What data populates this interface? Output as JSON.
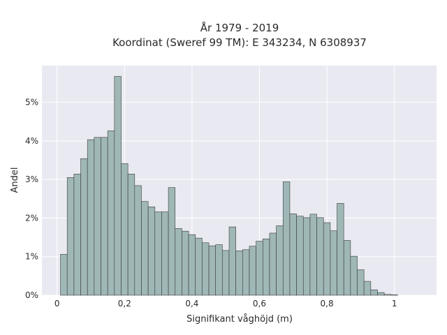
{
  "chart_data": {
    "type": "bar",
    "title": "År 1979 - 2019",
    "subtitle": "Koordinat (Sweref 99 TM): E 343234, N 6308937",
    "xlabel": "Signifikant våghöjd (m)",
    "ylabel": "Andel",
    "xlim": [
      -0.045,
      1.125
    ],
    "ylim": [
      0,
      0.0595
    ],
    "bin_width": 0.02,
    "bin_start": 0.01,
    "values": [
      0.0106,
      0.0305,
      0.0314,
      0.0354,
      0.0403,
      0.0409,
      0.0409,
      0.0426,
      0.0567,
      0.0341,
      0.0314,
      0.0284,
      0.0243,
      0.0229,
      0.0216,
      0.0216,
      0.0279,
      0.0173,
      0.0166,
      0.0157,
      0.0148,
      0.0136,
      0.0128,
      0.0131,
      0.0116,
      0.0177,
      0.0115,
      0.0118,
      0.0127,
      0.014,
      0.0146,
      0.0161,
      0.018,
      0.0294,
      0.0211,
      0.0205,
      0.0201,
      0.021,
      0.0201,
      0.0188,
      0.0167,
      0.0238,
      0.0142,
      0.0101,
      0.0066,
      0.0036,
      0.0014,
      0.0007,
      0.0002,
      0.0001
    ],
    "x_ticks": [
      {
        "value": 0,
        "label": "0"
      },
      {
        "value": 0.2,
        "label": "0,2"
      },
      {
        "value": 0.4,
        "label": "0,4"
      },
      {
        "value": 0.6,
        "label": "0,6"
      },
      {
        "value": 0.8,
        "label": "0,8"
      },
      {
        "value": 1.0,
        "label": "1"
      }
    ],
    "y_ticks": [
      {
        "value": 0,
        "label": "0%"
      },
      {
        "value": 0.01,
        "label": "1%"
      },
      {
        "value": 0.02,
        "label": "2%"
      },
      {
        "value": 0.03,
        "label": "3%"
      },
      {
        "value": 0.04,
        "label": "4%"
      },
      {
        "value": 0.05,
        "label": "5%"
      }
    ],
    "grid": true,
    "colors": {
      "plot_bg": "#e9e9f2",
      "bar_fill": "#9fb7b7",
      "bar_stroke": "#3a3a3a",
      "grid": "#ffffff"
    }
  }
}
